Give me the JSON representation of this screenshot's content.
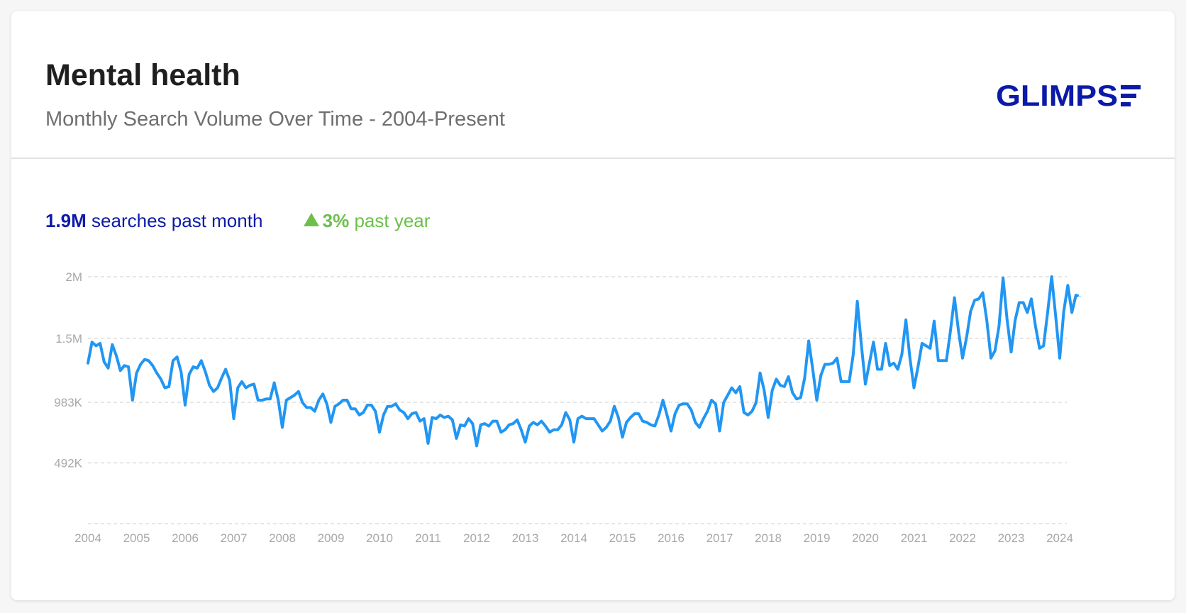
{
  "header": {
    "title": "Mental health",
    "subtitle": "Monthly Search Volume Over Time - 2004-Present",
    "logo_text": "GLIMPSE"
  },
  "stats": {
    "volume_value": "1.9M",
    "volume_label": "searches past month",
    "change_value": "3%",
    "change_label": "past year",
    "change_icon": "triangle-up-icon"
  },
  "colors": {
    "line": "#2196f3",
    "brand": "#0c1aa8",
    "positive": "#6cc04a",
    "grid": "#dddddd",
    "tick_text": "#a8a8a8"
  },
  "chart_data": {
    "type": "line",
    "title": "Mental health",
    "subtitle": "Monthly Search Volume Over Time - 2004-Present",
    "xlabel": "",
    "ylabel": "",
    "grid": true,
    "legend": "none",
    "x_start": "2004-01",
    "x_end": "2024-06",
    "ylim": [
      0,
      2000000
    ],
    "y_ticks": [
      {
        "value": 492000,
        "label": "492K"
      },
      {
        "value": 983000,
        "label": "983K"
      },
      {
        "value": 1500000,
        "label": "1.5M"
      },
      {
        "value": 2000000,
        "label": "2M"
      }
    ],
    "x_ticks": [
      "2004",
      "2005",
      "2006",
      "2007",
      "2008",
      "2009",
      "2010",
      "2011",
      "2012",
      "2013",
      "2014",
      "2015",
      "2016",
      "2017",
      "2018",
      "2019",
      "2020",
      "2021",
      "2022",
      "2023",
      "2024"
    ],
    "series": [
      {
        "values": [
          1300000,
          1470000,
          1440000,
          1460000,
          1310000,
          1260000,
          1450000,
          1360000,
          1240000,
          1280000,
          1270000,
          1000000,
          1220000,
          1290000,
          1330000,
          1320000,
          1280000,
          1220000,
          1170000,
          1100000,
          1110000,
          1320000,
          1350000,
          1230000,
          960000,
          1210000,
          1270000,
          1260000,
          1320000,
          1230000,
          1120000,
          1070000,
          1100000,
          1180000,
          1250000,
          1160000,
          850000,
          1100000,
          1150000,
          1100000,
          1120000,
          1130000,
          1000000,
          1000000,
          1010000,
          1010000,
          1140000,
          1000000,
          780000,
          1000000,
          1020000,
          1040000,
          1070000,
          980000,
          940000,
          940000,
          910000,
          1000000,
          1050000,
          970000,
          820000,
          950000,
          970000,
          1000000,
          1000000,
          930000,
          930000,
          880000,
          900000,
          960000,
          960000,
          910000,
          740000,
          880000,
          950000,
          950000,
          970000,
          920000,
          900000,
          850000,
          890000,
          900000,
          830000,
          850000,
          650000,
          860000,
          850000,
          880000,
          860000,
          870000,
          840000,
          690000,
          800000,
          790000,
          850000,
          810000,
          630000,
          800000,
          810000,
          790000,
          830000,
          830000,
          740000,
          760000,
          800000,
          810000,
          840000,
          760000,
          660000,
          790000,
          820000,
          800000,
          830000,
          790000,
          740000,
          760000,
          760000,
          800000,
          900000,
          840000,
          660000,
          850000,
          870000,
          850000,
          850000,
          850000,
          800000,
          750000,
          780000,
          830000,
          950000,
          860000,
          700000,
          820000,
          860000,
          890000,
          890000,
          830000,
          820000,
          800000,
          790000,
          880000,
          1000000,
          880000,
          750000,
          890000,
          960000,
          970000,
          970000,
          920000,
          820000,
          780000,
          850000,
          910000,
          1000000,
          970000,
          750000,
          980000,
          1040000,
          1100000,
          1060000,
          1110000,
          900000,
          880000,
          910000,
          980000,
          1220000,
          1080000,
          860000,
          1080000,
          1170000,
          1120000,
          1110000,
          1190000,
          1060000,
          1010000,
          1020000,
          1180000,
          1480000,
          1250000,
          1000000,
          1200000,
          1290000,
          1290000,
          1300000,
          1340000,
          1150000,
          1150000,
          1150000,
          1370000,
          1800000,
          1450000,
          1130000,
          1300000,
          1470000,
          1250000,
          1250000,
          1460000,
          1280000,
          1300000,
          1250000,
          1370000,
          1650000,
          1340000,
          1100000,
          1270000,
          1460000,
          1440000,
          1420000,
          1640000,
          1320000,
          1320000,
          1320000,
          1560000,
          1830000,
          1560000,
          1340000,
          1510000,
          1720000,
          1810000,
          1820000,
          1870000,
          1640000,
          1340000,
          1400000,
          1600000,
          1990000,
          1650000,
          1390000,
          1650000,
          1790000,
          1790000,
          1710000,
          1820000,
          1600000,
          1420000,
          1440000,
          1710000,
          2000000,
          1680000,
          1340000,
          1720000,
          1930000,
          1710000,
          1850000,
          1840000
        ]
      }
    ]
  }
}
